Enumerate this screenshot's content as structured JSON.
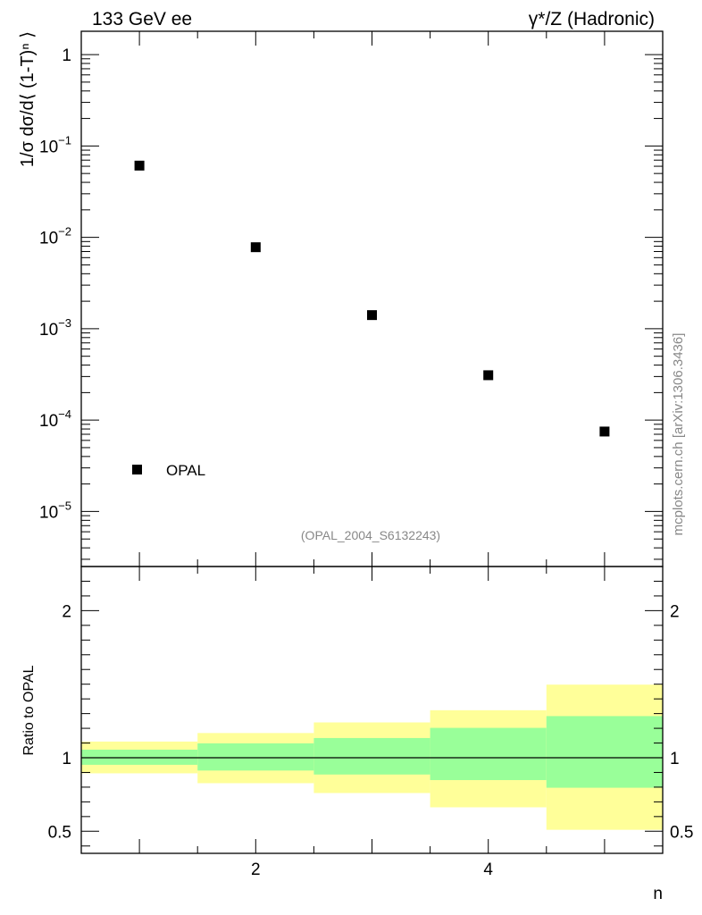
{
  "header": {
    "left_title": "133 GeV ee",
    "right_title": "γ*/Z (Hadronic)"
  },
  "watermark": "mcplots.cern.ch [arXiv:1306.3436]",
  "analysis_label": "(OPAL_2004_S6132243)",
  "chart_data": [
    {
      "type": "scatter",
      "panel": "main",
      "ylabel": "1/σ dσ/d⟨ (1-T)ⁿ ⟩",
      "yscale": "log",
      "ylim": [
        2.5e-06,
        1.8
      ],
      "xlim": [
        0.5,
        5.5
      ],
      "y_ticks": [
        {
          "value": 1,
          "label": "1"
        },
        {
          "value": 0.1,
          "base": "10",
          "exp": "−1"
        },
        {
          "value": 0.01,
          "base": "10",
          "exp": "−2"
        },
        {
          "value": 0.001,
          "base": "10",
          "exp": "−3"
        },
        {
          "value": 0.0001,
          "base": "10",
          "exp": "−4"
        },
        {
          "value": 1e-05,
          "base": "10",
          "exp": "−5"
        }
      ],
      "series": [
        {
          "name": "OPAL",
          "color": "#000000",
          "x": [
            1,
            2,
            3,
            4,
            5
          ],
          "y": [
            0.061,
            0.0078,
            0.00141,
            0.00031,
            7.5e-05
          ]
        }
      ],
      "legend": {
        "placement": "bottom-left",
        "entries": [
          "OPAL"
        ]
      }
    },
    {
      "type": "area",
      "panel": "ratio",
      "ylabel": "Ratio to OPAL",
      "xlabel": "n",
      "xlim": [
        0.5,
        5.5
      ],
      "ylim": [
        0.35,
        2.3
      ],
      "x_ticks": [
        {
          "value": 2,
          "label": "2"
        },
        {
          "value": 4,
          "label": "4"
        }
      ],
      "y_ticks": [
        {
          "value": 0.5,
          "label": "0.5"
        },
        {
          "value": 1,
          "label": "1"
        },
        {
          "value": 2,
          "label": "2"
        }
      ],
      "reference_line": 1,
      "bins": [
        {
          "lo": 0.5,
          "hi": 1.5,
          "stat": [
            0.952,
            1.055
          ],
          "total": [
            0.894,
            1.11
          ]
        },
        {
          "lo": 1.5,
          "hi": 2.5,
          "stat": [
            0.913,
            1.098
          ],
          "total": [
            0.827,
            1.168
          ]
        },
        {
          "lo": 2.5,
          "hi": 3.5,
          "stat": [
            0.886,
            1.134
          ],
          "total": [
            0.76,
            1.24
          ]
        },
        {
          "lo": 3.5,
          "hi": 4.5,
          "stat": [
            0.848,
            1.203
          ],
          "total": [
            0.663,
            1.323
          ]
        },
        {
          "lo": 4.5,
          "hi": 5.5,
          "stat": [
            0.796,
            1.283
          ],
          "total": [
            0.51,
            1.497
          ]
        }
      ],
      "colors": {
        "stat": "#99ff99",
        "total": "#ffff99"
      }
    }
  ]
}
